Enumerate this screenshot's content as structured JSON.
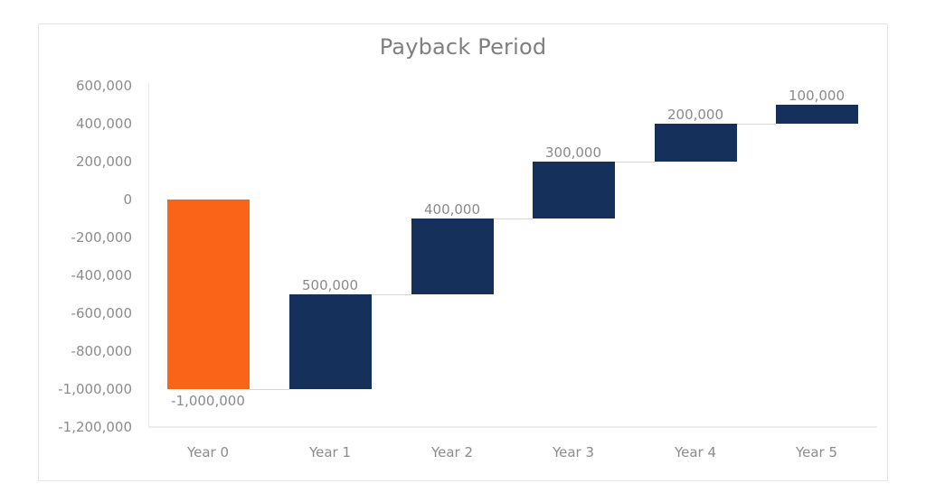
{
  "chart_data": {
    "type": "waterfall",
    "title": "Payback Period",
    "xlabel": "",
    "ylabel": "",
    "categories": [
      "Year 0",
      "Year 1",
      "Year 2",
      "Year 3",
      "Year 4",
      "Year 5"
    ],
    "values": [
      -1000000,
      500000,
      400000,
      300000,
      200000,
      100000
    ],
    "cumulative": [
      -1000000,
      -500000,
      -100000,
      200000,
      400000,
      500000
    ],
    "data_labels": [
      "-1,000,000",
      "500,000",
      "400,000",
      "300,000",
      "200,000",
      "100,000"
    ],
    "ylim": [
      -1200000,
      600000
    ],
    "yticks": [
      600000,
      400000,
      200000,
      0,
      -200000,
      -400000,
      -600000,
      -800000,
      -1000000,
      -1200000
    ],
    "ytick_labels": [
      "600,000",
      "400,000",
      "200,000",
      "0",
      "-200,000",
      "-400,000",
      "-600,000",
      "-800,000",
      "-1,000,000",
      "-1,200,000"
    ],
    "colors": {
      "initial": "#FA6419",
      "increase": "#15305A",
      "connector": "#D6D6D6"
    },
    "grid": false,
    "legend": "none"
  }
}
